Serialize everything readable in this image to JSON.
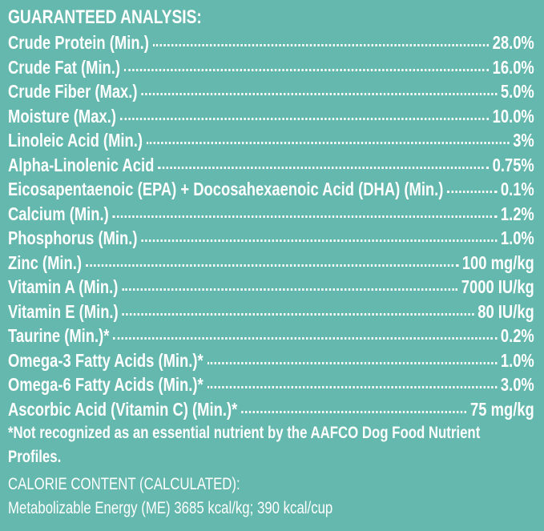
{
  "title": "GUARANTEED ANALYSIS:",
  "rows": [
    {
      "label": "Crude Protein (Min.)",
      "value": "28.0%"
    },
    {
      "label": "Crude Fat (Min.)",
      "value": "16.0%"
    },
    {
      "label": "Crude Fiber (Max.)",
      "value": "5.0%"
    },
    {
      "label": "Moisture (Max.)",
      "value": "10.0%"
    },
    {
      "label": "Linoleic Acid (Min.)",
      "value": "3%"
    },
    {
      "label": "Alpha-Linolenic Acid",
      "value": "0.75%"
    },
    {
      "label": "Eicosapentaenoic (EPA) + Docosahexaenoic Acid (DHA) (Min.)",
      "value": "0.1%"
    },
    {
      "label": "Calcium (Min.)",
      "value": "1.2%"
    },
    {
      "label": "Phosphorus (Min.)",
      "value": "1.0%"
    },
    {
      "label": "Zinc (Min.)",
      "value": "100 mg/kg"
    },
    {
      "label": "Vitamin A (Min.)",
      "value": "7000 IU/kg"
    },
    {
      "label": "Vitamin E (Min.)",
      "value": "80 IU/kg"
    },
    {
      "label": "Taurine (Min.)*",
      "value": "0.2%"
    },
    {
      "label": "Omega-3 Fatty Acids (Min.)*",
      "value": "1.0%"
    },
    {
      "label": "Omega-6 Fatty Acids (Min.)*",
      "value": "3.0%"
    },
    {
      "label": "Ascorbic Acid (Vitamin C) (Min.)*",
      "value": "75 mg/kg"
    }
  ],
  "footnote": "*Not recognized as an essential nutrient by the AAFCO Dog Food Nutrient Profiles.",
  "calorie": {
    "heading": "CALORIE CONTENT (CALCULATED):",
    "text": "Metabolizable Energy (ME) 3685 kcal/kg;  390 kcal/cup"
  }
}
